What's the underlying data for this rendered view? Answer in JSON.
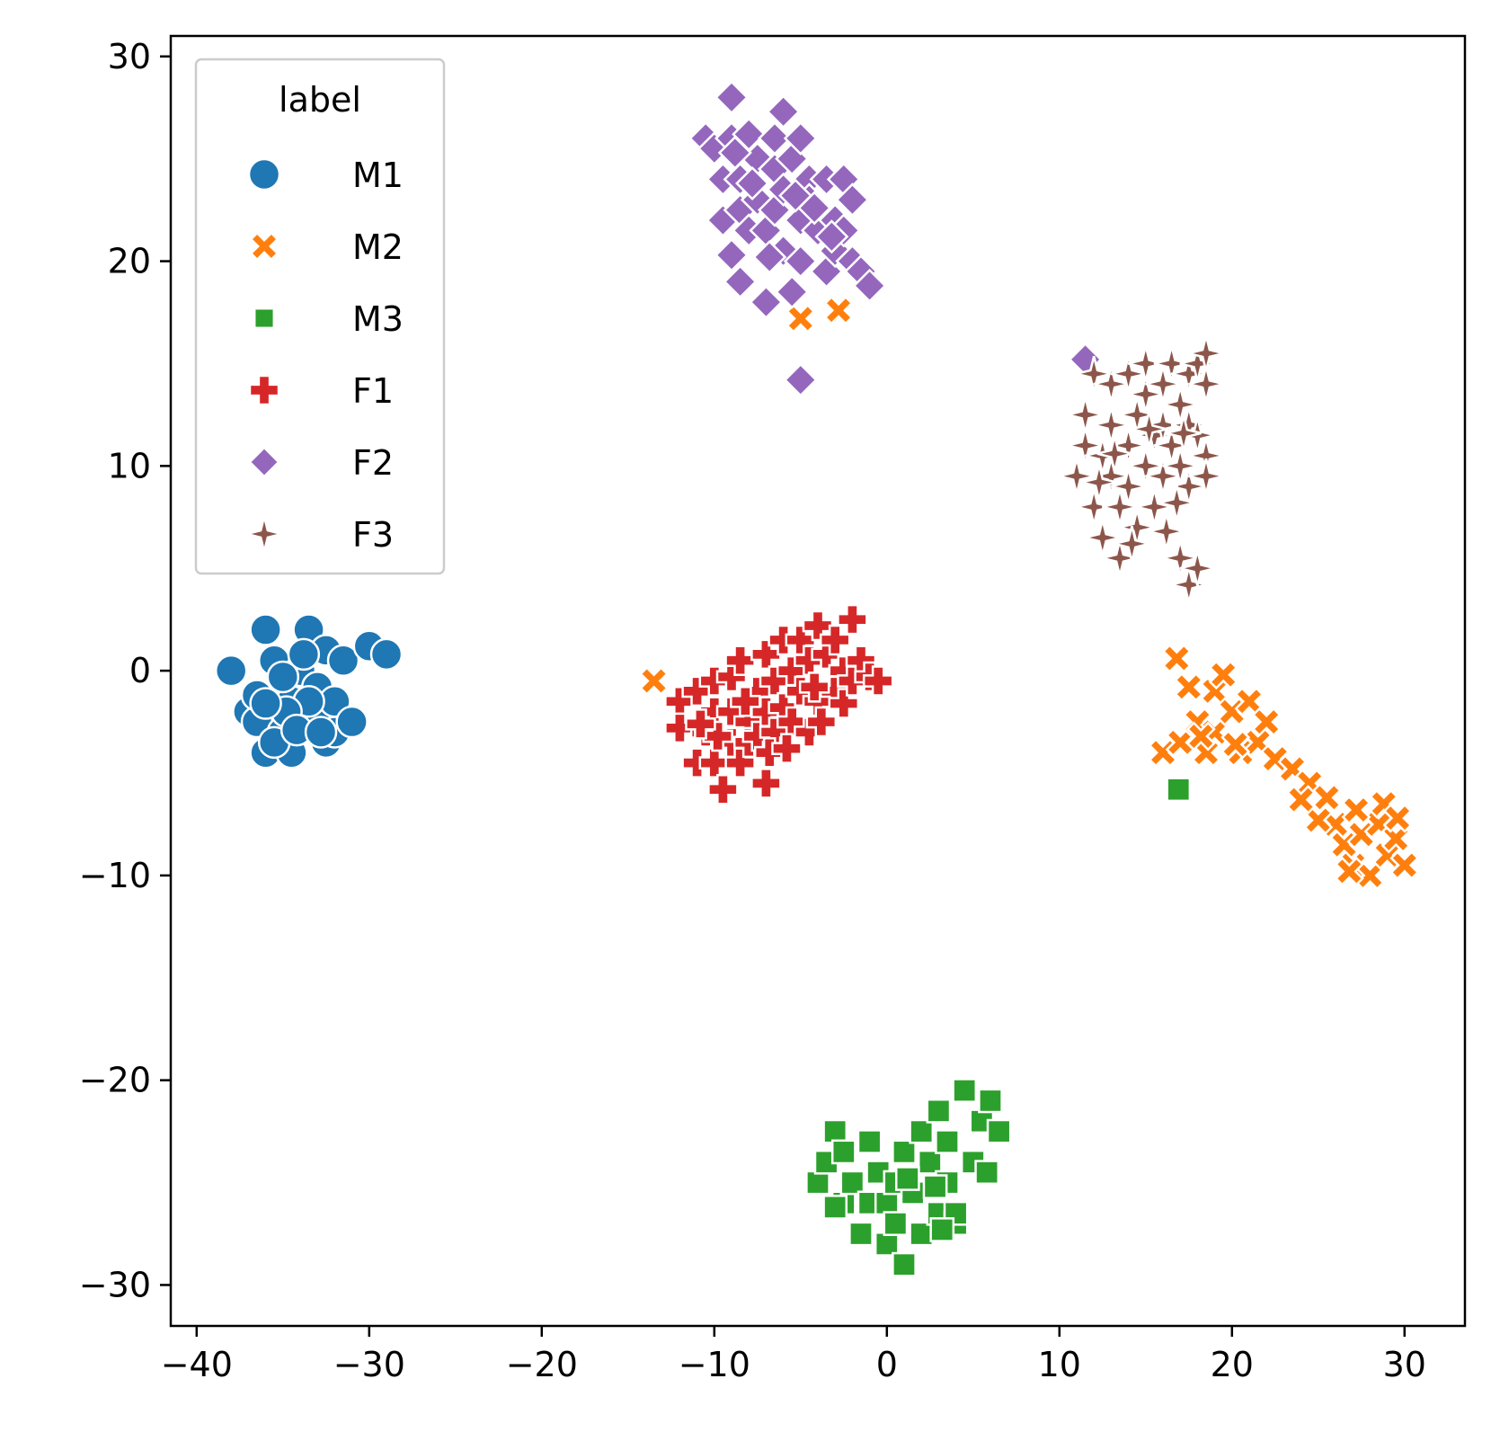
{
  "chart_data": {
    "type": "scatter",
    "title": "",
    "xlabel": "",
    "ylabel": "",
    "xlim": [
      -41.5,
      33.5
    ],
    "ylim": [
      -32,
      31
    ],
    "xticks": [
      -40,
      -30,
      -20,
      -10,
      0,
      10,
      20,
      30
    ],
    "yticks": [
      -30,
      -20,
      -10,
      0,
      10,
      20,
      30
    ],
    "xtick_labels": [
      "−40",
      "−30",
      "−20",
      "−10",
      "0",
      "10",
      "20",
      "30"
    ],
    "ytick_labels": [
      "−30",
      "−20",
      "−10",
      "0",
      "10",
      "20",
      "30"
    ],
    "grid": false,
    "legend": {
      "title": "label",
      "placement": "top-left"
    },
    "series": [
      {
        "name": "M1",
        "marker": "circle",
        "color": "#1f77b4",
        "points": [
          [
            -38,
            0
          ],
          [
            -37,
            -2
          ],
          [
            -36.5,
            -2.5
          ],
          [
            -36,
            -4
          ],
          [
            -36,
            2
          ],
          [
            -35.5,
            0.5
          ],
          [
            -35,
            -1
          ],
          [
            -35,
            -3
          ],
          [
            -34.5,
            -4
          ],
          [
            -34.5,
            -1.5
          ],
          [
            -34,
            0
          ],
          [
            -34,
            -2.5
          ],
          [
            -33.5,
            2
          ],
          [
            -33,
            -0.8
          ],
          [
            -33,
            -2
          ],
          [
            -32.5,
            1
          ],
          [
            -32.5,
            -3.5
          ],
          [
            -32,
            -1.5
          ],
          [
            -32,
            -3
          ],
          [
            -31.5,
            0.5
          ],
          [
            -31,
            -2.5
          ],
          [
            -30,
            1.2
          ],
          [
            -29,
            0.8
          ],
          [
            -35.5,
            -3.5
          ],
          [
            -36.5,
            -1.2
          ],
          [
            -35,
            -0.3
          ],
          [
            -33.5,
            -1.5
          ],
          [
            -34.8,
            -2
          ],
          [
            -33.8,
            0.8
          ],
          [
            -36,
            -1.6
          ],
          [
            -34.2,
            -2.9
          ],
          [
            -32.8,
            -3
          ]
        ]
      },
      {
        "name": "M2",
        "marker": "x",
        "color": "#ff7f0e",
        "points": [
          [
            -13.5,
            -0.5
          ],
          [
            -5,
            17.2
          ],
          [
            -2.8,
            17.6
          ],
          [
            16.8,
            0.6
          ],
          [
            17.5,
            -0.8
          ],
          [
            16,
            -4
          ],
          [
            17,
            -3.5
          ],
          [
            18,
            -2.5
          ],
          [
            18.5,
            -4
          ],
          [
            19,
            -1
          ],
          [
            19,
            -3
          ],
          [
            19.5,
            -0.2
          ],
          [
            20,
            -2
          ],
          [
            20.5,
            -4
          ],
          [
            21,
            -1.5
          ],
          [
            21.5,
            -3.5
          ],
          [
            22,
            -2.5
          ],
          [
            22.5,
            -4.3
          ],
          [
            23.5,
            -4.8
          ],
          [
            24.5,
            -5.5
          ],
          [
            25.5,
            -6.2
          ],
          [
            26,
            -7.5
          ],
          [
            26.5,
            -8.5
          ],
          [
            27,
            -9.5
          ],
          [
            27.5,
            -8
          ],
          [
            28,
            -10
          ],
          [
            28.5,
            -7.5
          ],
          [
            29,
            -9
          ],
          [
            29.5,
            -8.2
          ],
          [
            30,
            -9.5
          ],
          [
            27.2,
            -6.8
          ],
          [
            28.8,
            -6.5
          ],
          [
            26.8,
            -9.8
          ],
          [
            25,
            -7.3
          ],
          [
            24,
            -6.3
          ],
          [
            18.2,
            -3.2
          ],
          [
            20.2,
            -3.6
          ],
          [
            29.6,
            -7.2
          ]
        ]
      },
      {
        "name": "M3",
        "marker": "square",
        "color": "#2ca02c",
        "points": [
          [
            16.9,
            -5.8
          ],
          [
            -4,
            -25
          ],
          [
            -3.5,
            -24
          ],
          [
            -3,
            -22.5
          ],
          [
            -2.5,
            -26
          ],
          [
            -2.5,
            -23.5
          ],
          [
            -2,
            -25
          ],
          [
            -1.5,
            -27.5
          ],
          [
            -1,
            -23
          ],
          [
            -1,
            -26
          ],
          [
            -0.5,
            -24.5
          ],
          [
            0,
            -26
          ],
          [
            0,
            -28
          ],
          [
            0.5,
            -25
          ],
          [
            0.5,
            -27
          ],
          [
            1,
            -29
          ],
          [
            1,
            -23.5
          ],
          [
            1.5,
            -25.5
          ],
          [
            2,
            -22.5
          ],
          [
            2,
            -27.5
          ],
          [
            2.5,
            -24
          ],
          [
            3,
            -21.5
          ],
          [
            3,
            -26.5
          ],
          [
            3.5,
            -23
          ],
          [
            3.5,
            -25
          ],
          [
            4,
            -27
          ],
          [
            4.5,
            -20.5
          ],
          [
            5,
            -24
          ],
          [
            5.5,
            -22
          ],
          [
            5.8,
            -24.5
          ],
          [
            6,
            -21
          ],
          [
            6.5,
            -22.5
          ],
          [
            4,
            -26.5
          ],
          [
            1.2,
            -24.8
          ],
          [
            2.8,
            -25.2
          ],
          [
            -3,
            -26.2
          ],
          [
            3.2,
            -27.3
          ]
        ]
      },
      {
        "name": "F1",
        "marker": "plus",
        "color": "#d62728",
        "points": [
          [
            -12,
            -1.5
          ],
          [
            -12,
            -2.8
          ],
          [
            -11,
            -1
          ],
          [
            -11,
            -4.5
          ],
          [
            -10.5,
            -3
          ],
          [
            -10,
            -0.5
          ],
          [
            -10,
            -2
          ],
          [
            -10,
            -4.5
          ],
          [
            -9.5,
            -5.8
          ],
          [
            -9,
            -3.5
          ],
          [
            -9,
            -0.3
          ],
          [
            -9,
            -2
          ],
          [
            -8.5,
            -4.5
          ],
          [
            -8.5,
            0.5
          ],
          [
            -8,
            -2.5
          ],
          [
            -8,
            -3.5
          ],
          [
            -7.5,
            -1
          ],
          [
            -7.5,
            -3.2
          ],
          [
            -7,
            -5.5
          ],
          [
            -7,
            -2
          ],
          [
            -7,
            0.8
          ],
          [
            -6.5,
            -0.5
          ],
          [
            -6.5,
            -3
          ],
          [
            -6,
            1.5
          ],
          [
            -6,
            -1.8
          ],
          [
            -5.5,
            -2.5
          ],
          [
            -5.5,
            0
          ],
          [
            -5,
            1.5
          ],
          [
            -5,
            -1
          ],
          [
            -4.5,
            0.5
          ],
          [
            -4.5,
            -3
          ],
          [
            -4,
            2.2
          ],
          [
            -4,
            -1.5
          ],
          [
            -3.5,
            0.8
          ],
          [
            -3,
            1.5
          ],
          [
            -3,
            -1
          ],
          [
            -2.5,
            -1.6
          ],
          [
            -2.5,
            0
          ],
          [
            -2,
            2.5
          ],
          [
            -2,
            -0.5
          ],
          [
            -1.5,
            0.5
          ],
          [
            -1,
            -0.3
          ],
          [
            -0.5,
            -0.5
          ],
          [
            -9.8,
            -3.2
          ],
          [
            -6.8,
            -4
          ],
          [
            -8.2,
            -1.5
          ],
          [
            -5.8,
            -3.8
          ],
          [
            -4.2,
            -0.8
          ],
          [
            -3.8,
            -2.5
          ],
          [
            -10.8,
            -2.6
          ]
        ]
      },
      {
        "name": "F2",
        "marker": "diamond",
        "color": "#9467bd",
        "points": [
          [
            -10.5,
            26
          ],
          [
            -10,
            25.5
          ],
          [
            -9.5,
            24
          ],
          [
            -9.5,
            22
          ],
          [
            -9,
            28
          ],
          [
            -9,
            26
          ],
          [
            -9,
            20.3
          ],
          [
            -8.5,
            24
          ],
          [
            -8.5,
            22.5
          ],
          [
            -8.5,
            19
          ],
          [
            -8,
            26.2
          ],
          [
            -8,
            21.5
          ],
          [
            -7.5,
            25
          ],
          [
            -7.5,
            23
          ],
          [
            -7,
            21.5
          ],
          [
            -7,
            18
          ],
          [
            -6.5,
            26
          ],
          [
            -6.5,
            24.5
          ],
          [
            -6.5,
            22.5
          ],
          [
            -6,
            27.3
          ],
          [
            -6,
            23.5
          ],
          [
            -6,
            20.5
          ],
          [
            -5.5,
            25
          ],
          [
            -5.5,
            18.5
          ],
          [
            -5,
            26
          ],
          [
            -5,
            22
          ],
          [
            -5,
            20
          ],
          [
            -4.5,
            24
          ],
          [
            -4.5,
            23
          ],
          [
            -4,
            21.5
          ],
          [
            -3.5,
            24
          ],
          [
            -3.5,
            19.5
          ],
          [
            -3,
            22
          ],
          [
            -3,
            20.5
          ],
          [
            -2.5,
            24
          ],
          [
            -2.5,
            21.5
          ],
          [
            -2,
            23
          ],
          [
            -2,
            20
          ],
          [
            -1.5,
            19.5
          ],
          [
            -1,
            18.8
          ],
          [
            -5,
            14.2
          ],
          [
            11.5,
            15.2
          ],
          [
            -7.8,
            23.8
          ],
          [
            -5.3,
            23.2
          ],
          [
            -4.2,
            22.6
          ],
          [
            -6.8,
            20.2
          ],
          [
            -3.2,
            21.2
          ],
          [
            -8.8,
            25.3
          ]
        ]
      },
      {
        "name": "F3",
        "marker": "star4",
        "color": "#8c564b",
        "points": [
          [
            11,
            9.5
          ],
          [
            11.5,
            12.5
          ],
          [
            11.5,
            11
          ],
          [
            12,
            14.5
          ],
          [
            12,
            8
          ],
          [
            12.5,
            10.5
          ],
          [
            12.5,
            6.5
          ],
          [
            13,
            14
          ],
          [
            13,
            12
          ],
          [
            13,
            9.5
          ],
          [
            13.5,
            8
          ],
          [
            13.5,
            5.5
          ],
          [
            14,
            14.5
          ],
          [
            14,
            11
          ],
          [
            14,
            9
          ],
          [
            14.5,
            12.5
          ],
          [
            14.5,
            7
          ],
          [
            15,
            15
          ],
          [
            15,
            10
          ],
          [
            15,
            13.5
          ],
          [
            15.5,
            11.5
          ],
          [
            15.5,
            8
          ],
          [
            16,
            14
          ],
          [
            16,
            12
          ],
          [
            16,
            9.5
          ],
          [
            16.5,
            15
          ],
          [
            16.5,
            11
          ],
          [
            17,
            13
          ],
          [
            17,
            10
          ],
          [
            17,
            5.5
          ],
          [
            17.5,
            14.5
          ],
          [
            17.5,
            12
          ],
          [
            17.5,
            9
          ],
          [
            17.5,
            4.2
          ],
          [
            18,
            15
          ],
          [
            18,
            11.5
          ],
          [
            18,
            5
          ],
          [
            18.5,
            14
          ],
          [
            18.5,
            10.5
          ],
          [
            18.5,
            9.5
          ],
          [
            18.5,
            15.5
          ],
          [
            14.2,
            6.2
          ],
          [
            13.2,
            10.6
          ],
          [
            16.2,
            6.8
          ],
          [
            15.2,
            11.8
          ],
          [
            16.8,
            8.2
          ],
          [
            12.3,
            9.2
          ],
          [
            17.2,
            11.6
          ]
        ]
      }
    ]
  }
}
